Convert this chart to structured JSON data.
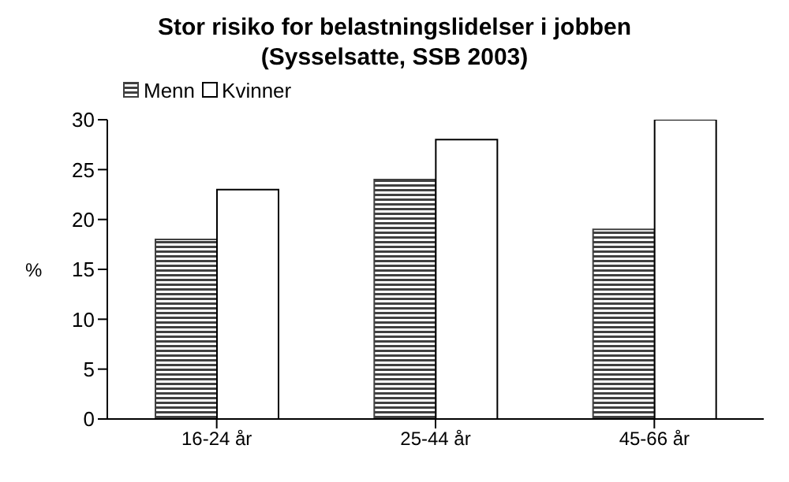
{
  "chart_data": {
    "type": "bar",
    "title": "Stor risiko for belastningslidelser i jobben\n(Sysselsatte, SSB 2003)",
    "categories": [
      "16-24 år",
      "25-44 år",
      "45-66 år"
    ],
    "series": [
      {
        "name": "Menn",
        "color": "#404040",
        "values": [
          18,
          24,
          19
        ]
      },
      {
        "name": "Kvinner",
        "color": "#ffffff",
        "values": [
          23,
          28,
          30
        ]
      }
    ],
    "ylabel": "%",
    "ylim": [
      0,
      30
    ],
    "yticks": [
      0,
      5,
      10,
      15,
      20,
      25,
      30
    ],
    "grid": false,
    "legend": "top left"
  }
}
